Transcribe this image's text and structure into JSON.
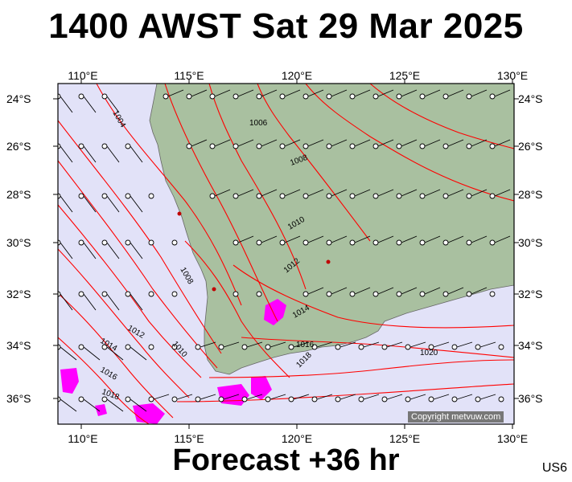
{
  "title": "1400 AWST Sat 29 Mar 2025",
  "footer": "Forecast +36 hr",
  "code": "US6",
  "copyright": "Copyright metvuw.com",
  "lon_labels": [
    "110°E",
    "115°E",
    "120°E",
    "125°E",
    "130°E"
  ],
  "lat_labels": [
    "24°S",
    "26°S",
    "28°S",
    "30°S",
    "32°S",
    "34°S",
    "36°S"
  ],
  "isobar_labels": [
    "1004",
    "1006",
    "1008",
    "1010",
    "1012",
    "1014",
    "1016",
    "1018",
    "1020",
    "1008",
    "1010",
    "1012",
    "1014",
    "1016",
    "1018"
  ],
  "colors": {
    "sea": "#e2e2f8",
    "land": "#a9c0a0",
    "isobar": "#ff0000",
    "rain": "#ff00ff"
  }
}
